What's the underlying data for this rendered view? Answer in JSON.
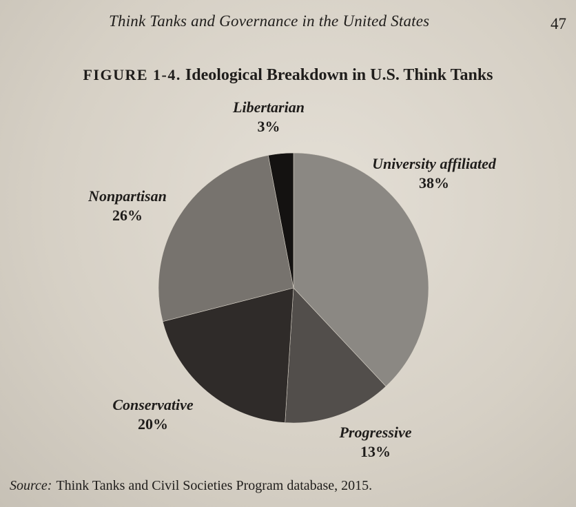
{
  "running_head": "Think Tanks and Governance in the United States",
  "page_number": "47",
  "figure": {
    "label": "FIGURE 1-4.",
    "title": "Ideological Breakdown in U.S. Think Tanks"
  },
  "chart_data": {
    "type": "pie",
    "title": "Ideological Breakdown in U.S. Think Tanks",
    "slices": [
      {
        "label": "University affiliated",
        "value": 38,
        "display": "38%",
        "color": "#8b8883"
      },
      {
        "label": "Progressive",
        "value": 13,
        "display": "13%",
        "color": "#524e4b"
      },
      {
        "label": "Conservative",
        "value": 20,
        "display": "20%",
        "color": "#2f2b29"
      },
      {
        "label": "Nonpartisan",
        "value": 26,
        "display": "26%",
        "color": "#77736e"
      },
      {
        "label": "Libertarian",
        "value": 3,
        "display": "3%",
        "color": "#141211"
      }
    ],
    "start_angle": "top",
    "direction": "clockwise"
  },
  "source": {
    "tag": "Source:",
    "text": "Think Tanks and Civil Societies Program database, 2015."
  }
}
